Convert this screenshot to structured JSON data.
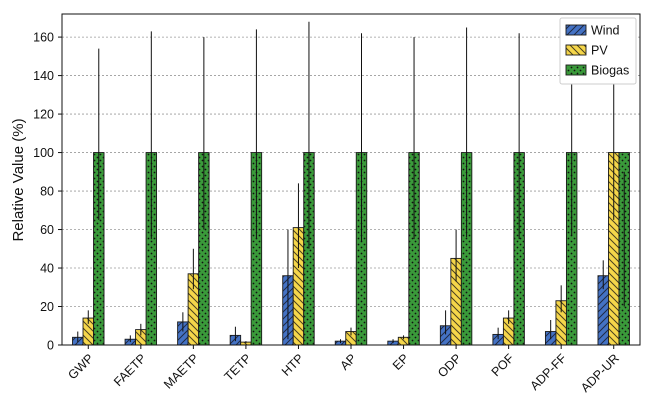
{
  "chart_data": {
    "type": "bar",
    "title": "",
    "xlabel": "",
    "ylabel": "Relative Value (%)",
    "ylim": [
      0,
      172
    ],
    "yticks": [
      0,
      20,
      40,
      60,
      80,
      100,
      120,
      140,
      160
    ],
    "grid": "horizontal dotted",
    "legend_position": "top-right",
    "categories": [
      "GWP",
      "FAETP",
      "MAETP",
      "TETP",
      "HTP",
      "AP",
      "EP",
      "ODP",
      "POF",
      "ADP-FF",
      "ADP-UR"
    ],
    "series": [
      {
        "name": "Wind",
        "color": "#4472C4",
        "hatch": "diagonal-up",
        "values": [
          4,
          3,
          12,
          5,
          36,
          2,
          2,
          10,
          5.5,
          7,
          36
        ],
        "error_low": [
          1.5,
          1.5,
          7,
          2,
          3,
          1,
          1,
          5.5,
          3,
          3,
          29
        ],
        "error_high": [
          7,
          5,
          17,
          9.5,
          60,
          3,
          3,
          18,
          9,
          13,
          44
        ]
      },
      {
        "name": "PV",
        "color": "#F5D64A",
        "hatch": "diagonal-down",
        "values": [
          14,
          8,
          37,
          1.5,
          61,
          7,
          4,
          45,
          14,
          23,
          100
        ],
        "error_low": [
          11,
          5,
          29,
          1,
          40,
          5,
          3,
          33,
          11,
          17,
          65
        ],
        "error_high": [
          18,
          11,
          50,
          2,
          84,
          9,
          5,
          60,
          18,
          31,
          137
        ]
      },
      {
        "name": "Biogas",
        "color": "#3A9A3A",
        "hatch": "dots",
        "values": [
          100,
          100,
          100,
          100,
          100,
          100,
          100,
          100,
          100,
          100,
          100
        ],
        "error_low": [
          65,
          55,
          60,
          55,
          50,
          54,
          55,
          56,
          55,
          57,
          20
        ],
        "error_high": [
          154,
          163,
          160,
          164,
          168,
          162,
          160,
          165,
          162,
          140,
          90
        ]
      }
    ]
  }
}
